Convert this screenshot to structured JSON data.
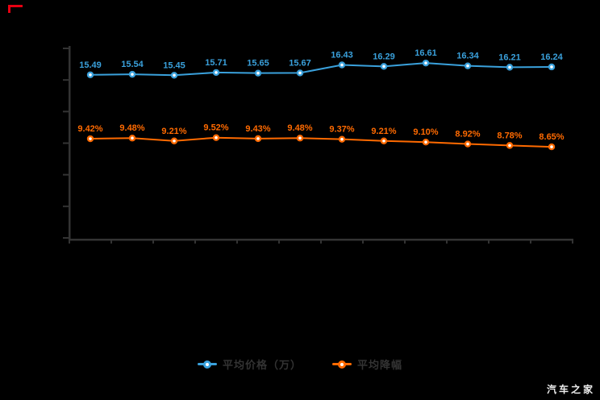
{
  "watermark": {
    "text": "汽车之家"
  },
  "legend": {
    "items": [
      {
        "label": "平均价格（万）",
        "color": "#3aa1dc"
      },
      {
        "label": "平均降幅",
        "color": "#ff6a00"
      }
    ]
  },
  "colors": {
    "background": "#000000",
    "axis": "#333333",
    "blue_series": "#3aa1dc",
    "orange_series": "#ff6a00",
    "red_corner_mark": "#e60012",
    "legend_text": "#333333",
    "watermark_text": "#ededed"
  },
  "chart_data": {
    "type": "line",
    "title": "",
    "xlabel": "",
    "ylabel": "",
    "ylim": [
      0,
      18
    ],
    "y_tick_values": [
      0,
      3,
      6,
      9,
      12,
      15,
      18
    ],
    "x_tick_count": 13,
    "grid": false,
    "legend_position": "bottom",
    "x_axis_labels_visible": false,
    "y_axis_labels_visible": false,
    "series": [
      {
        "name": "平均价格（万）",
        "color": "#3aa1dc",
        "values": [
          15.49,
          15.54,
          15.45,
          15.71,
          15.65,
          15.67,
          16.43,
          16.29,
          16.61,
          16.34,
          16.21,
          16.24
        ],
        "labels": [
          "15.49",
          "15.54",
          "15.45",
          "15.71",
          "15.65",
          "15.67",
          "16.43",
          "16.29",
          "16.61",
          "16.34",
          "16.21",
          "16.24"
        ]
      },
      {
        "name": "平均降幅",
        "color": "#ff6a00",
        "values": [
          9.42,
          9.48,
          9.21,
          9.52,
          9.43,
          9.48,
          9.37,
          9.21,
          9.1,
          8.92,
          8.78,
          8.65
        ],
        "labels": [
          "9.42%",
          "9.48%",
          "9.21%",
          "9.52%",
          "9.43%",
          "9.48%",
          "9.37%",
          "9.21%",
          "9.10%",
          "8.92%",
          "8.78%",
          "8.65%"
        ]
      }
    ]
  }
}
